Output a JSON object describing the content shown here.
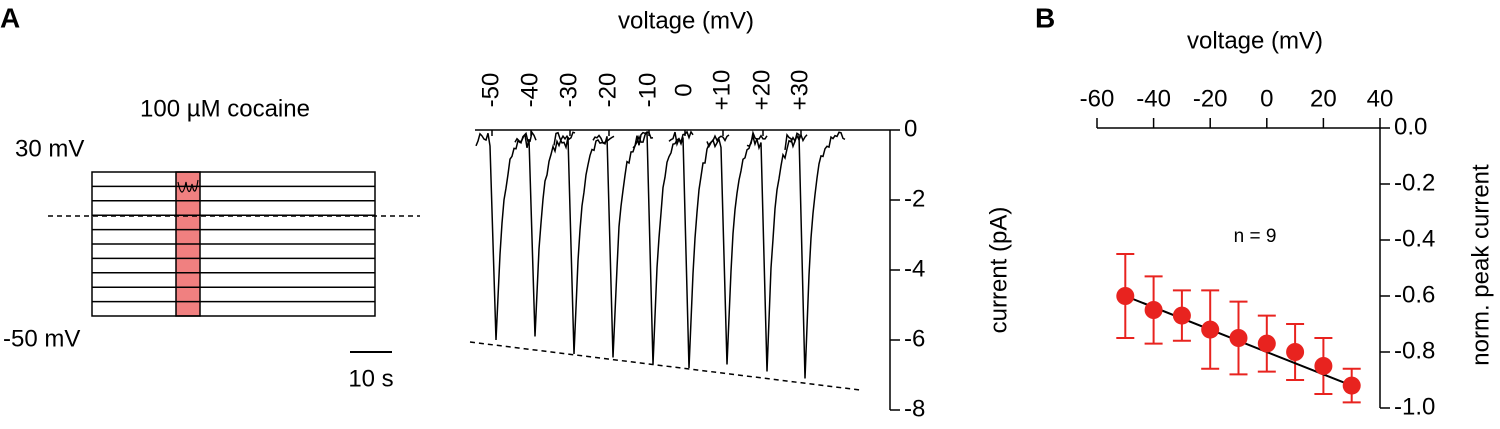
{
  "panel_labels": [
    "A",
    "B"
  ],
  "schematic": {
    "drug_label": "100 µM cocaine",
    "top_voltage": "30 mV",
    "bottom_voltage": "-50 mV",
    "scale_bar": "10 s"
  },
  "chart_data": [
    {
      "type": "traces",
      "x_label": "voltage (mV)",
      "y_label": "current (pA)",
      "categories": [
        {
          "value": -50,
          "label": "-50"
        },
        {
          "value": -40,
          "label": "-40"
        },
        {
          "value": -30,
          "label": "-30"
        },
        {
          "value": -20,
          "label": "-20"
        },
        {
          "value": -10,
          "label": "-10"
        },
        {
          "value": 0,
          "label": "0"
        },
        {
          "value": 10,
          "label": "+10"
        },
        {
          "value": 20,
          "label": "+20"
        },
        {
          "value": 30,
          "label": "+30"
        }
      ],
      "values": [
        -6.0,
        -5.9,
        -6.4,
        -6.5,
        -6.7,
        -6.8,
        -6.7,
        -6.9,
        -7.1
      ],
      "color": "#000000",
      "ylim": [
        -8,
        0
      ],
      "yticks": [
        0,
        -2,
        -4,
        -6,
        -8
      ]
    },
    {
      "type": "scatter",
      "x_label": "voltage (mV)",
      "y_label": "norm. peak current",
      "annotation": "n = 9",
      "x": [
        -50,
        -40,
        -30,
        -20,
        -10,
        0,
        10,
        20,
        30
      ],
      "values": [
        -0.6,
        -0.65,
        -0.67,
        -0.72,
        -0.75,
        -0.77,
        -0.8,
        -0.85,
        -0.92
      ],
      "errors": [
        0.15,
        0.12,
        0.09,
        0.14,
        0.13,
        0.1,
        0.1,
        0.1,
        0.06
      ],
      "color": "#e8231f",
      "xlim": [
        -60,
        40
      ],
      "xticks": [
        -60,
        -40,
        -20,
        0,
        20,
        40
      ],
      "ylim": [
        -1,
        0
      ],
      "yticks": [
        {
          "value": 0,
          "label": "0.0"
        },
        -0.2,
        -0.4,
        -0.6,
        -0.8,
        {
          "value": -1,
          "label": "-1.0"
        }
      ]
    }
  ]
}
